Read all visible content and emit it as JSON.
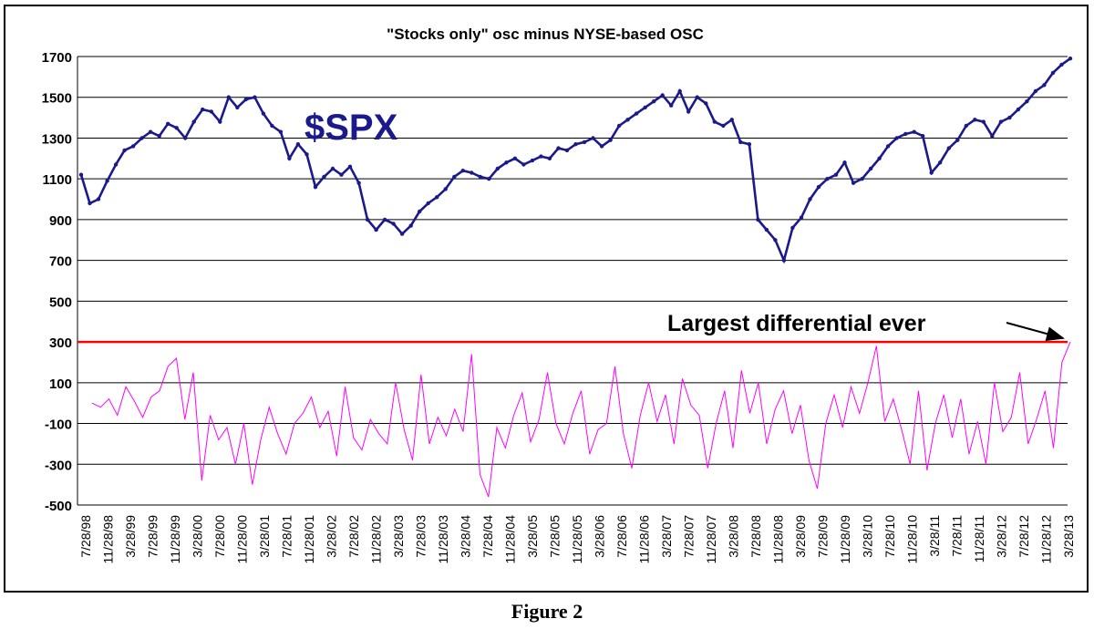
{
  "chart_data": {
    "type": "line",
    "title": "\"Stocks only\" osc minus NYSE-based OSC",
    "caption": "Figure 2",
    "xlabel": "",
    "ylabel": "",
    "ylim": [
      -500,
      1700
    ],
    "yticks": [
      -500,
      -300,
      -100,
      100,
      300,
      500,
      700,
      900,
      1100,
      1300,
      1500,
      1700
    ],
    "grid": true,
    "x_tick_labels": [
      "7/28/98",
      "11/28/98",
      "3/28/99",
      "7/28/99",
      "11/28/99",
      "3/28/00",
      "7/28/00",
      "11/28/00",
      "3/28/01",
      "7/28/01",
      "11/28/01",
      "3/28/02",
      "7/28/02",
      "11/28/02",
      "3/28/03",
      "7/28/03",
      "11/28/03",
      "3/28/04",
      "7/28/04",
      "11/28/04",
      "3/28/05",
      "7/28/05",
      "11/28/05",
      "3/28/06",
      "7/28/06",
      "11/28/06",
      "3/28/07",
      "7/28/07",
      "11/28/07",
      "3/28/08",
      "7/28/08",
      "11/28/08",
      "3/28/09",
      "7/28/09",
      "11/28/09",
      "3/28/10",
      "7/28/10",
      "11/28/10",
      "3/28/11",
      "7/28/11",
      "11/28/11",
      "3/28/12",
      "7/28/12",
      "11/28/12",
      "3/28/13"
    ],
    "series": [
      {
        "name": "$SPX",
        "color": "#1a1a8c",
        "values": [
          1120,
          980,
          1000,
          1090,
          1170,
          1240,
          1260,
          1300,
          1330,
          1310,
          1370,
          1350,
          1300,
          1380,
          1440,
          1430,
          1380,
          1500,
          1450,
          1490,
          1500,
          1420,
          1360,
          1330,
          1200,
          1270,
          1220,
          1060,
          1110,
          1150,
          1120,
          1160,
          1080,
          900,
          850,
          900,
          880,
          830,
          870,
          940,
          980,
          1010,
          1050,
          1110,
          1140,
          1130,
          1110,
          1100,
          1150,
          1180,
          1200,
          1170,
          1190,
          1210,
          1200,
          1250,
          1240,
          1270,
          1280,
          1300,
          1260,
          1290,
          1360,
          1390,
          1420,
          1450,
          1480,
          1510,
          1460,
          1530,
          1430,
          1500,
          1470,
          1380,
          1360,
          1390,
          1280,
          1270,
          900,
          850,
          800,
          700,
          860,
          910,
          1000,
          1060,
          1100,
          1120,
          1180,
          1080,
          1100,
          1150,
          1200,
          1260,
          1300,
          1320,
          1330,
          1310,
          1130,
          1180,
          1250,
          1290,
          1360,
          1390,
          1380,
          1310,
          1380,
          1400,
          1440,
          1480,
          1530,
          1560,
          1620,
          1660,
          1690
        ]
      },
      {
        "name": "",
        "color": "#ff00ff",
        "values": [
          0,
          -20,
          20,
          -60,
          80,
          10,
          -70,
          30,
          60,
          180,
          220,
          -80,
          150,
          -380,
          -60,
          -180,
          -120,
          -300,
          -100,
          -400,
          -180,
          -20,
          -150,
          -250,
          -100,
          -50,
          30,
          -120,
          -40,
          -260,
          80,
          -170,
          -230,
          -80,
          -150,
          -200,
          100,
          -130,
          -280,
          140,
          -200,
          -70,
          -160,
          -30,
          -140,
          240,
          -350,
          -460,
          -120,
          -220,
          -60,
          50,
          -190,
          -80,
          150,
          -100,
          -200,
          -50,
          60,
          -250,
          -130,
          -100,
          180,
          -150,
          -320,
          -60,
          100,
          -90,
          40,
          -200,
          120,
          -10,
          -60,
          -320,
          -100,
          60,
          -220,
          160,
          -50,
          100,
          -200,
          -30,
          60,
          -150,
          -10,
          -280,
          -420,
          -100,
          40,
          -120,
          80,
          -50,
          100,
          280,
          -90,
          20,
          -130,
          -300,
          60,
          -330,
          -100,
          40,
          -170,
          20,
          -250,
          -90,
          -300,
          100,
          -140,
          -70,
          150,
          -200,
          -80,
          60,
          -220,
          200,
          300
        ]
      }
    ],
    "reference_line": {
      "value": 300,
      "color": "#ff0000"
    },
    "annotations": {
      "spx_label": "$SPX",
      "differential_label": "Largest differential ever"
    }
  }
}
